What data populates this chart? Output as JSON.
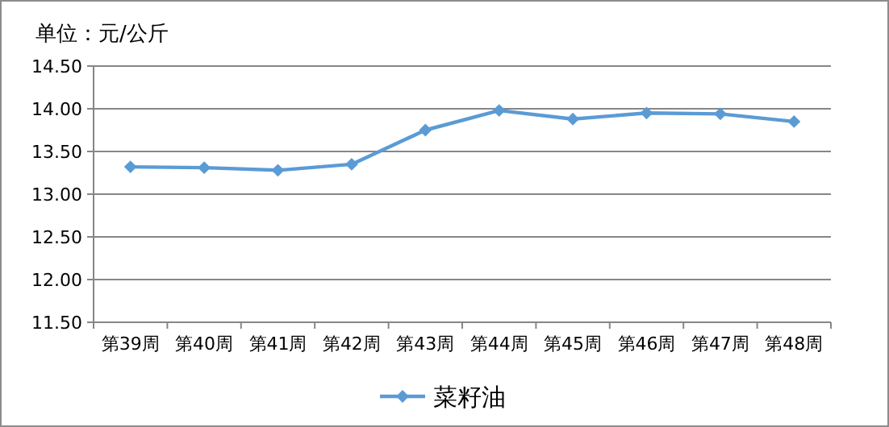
{
  "chart_data": {
    "type": "line",
    "ylabel": "单位：元/公斤",
    "categories": [
      "第39周",
      "第40周",
      "第41周",
      "第42周",
      "第43周",
      "第44周",
      "第45周",
      "第46周",
      "第47周",
      "第48周"
    ],
    "series": [
      {
        "name": "菜籽油",
        "color": "#5b9bd5",
        "values": [
          13.32,
          13.31,
          13.28,
          13.35,
          13.75,
          13.98,
          13.88,
          13.95,
          13.94,
          13.85
        ]
      }
    ],
    "ylim": [
      11.5,
      14.5
    ],
    "yticks": [
      {
        "value": 11.5,
        "label": "11.50"
      },
      {
        "value": 12,
        "label": "12.00"
      },
      {
        "value": 12.5,
        "label": "12.50"
      },
      {
        "value": 13,
        "label": "13.00"
      },
      {
        "value": 13.5,
        "label": "13.50"
      },
      {
        "value": 14,
        "label": "14.00"
      },
      {
        "value": 14.5,
        "label": "14.50"
      }
    ],
    "grid": "y",
    "legend": "bottom",
    "marker": "diamond",
    "line_style": "solid"
  }
}
